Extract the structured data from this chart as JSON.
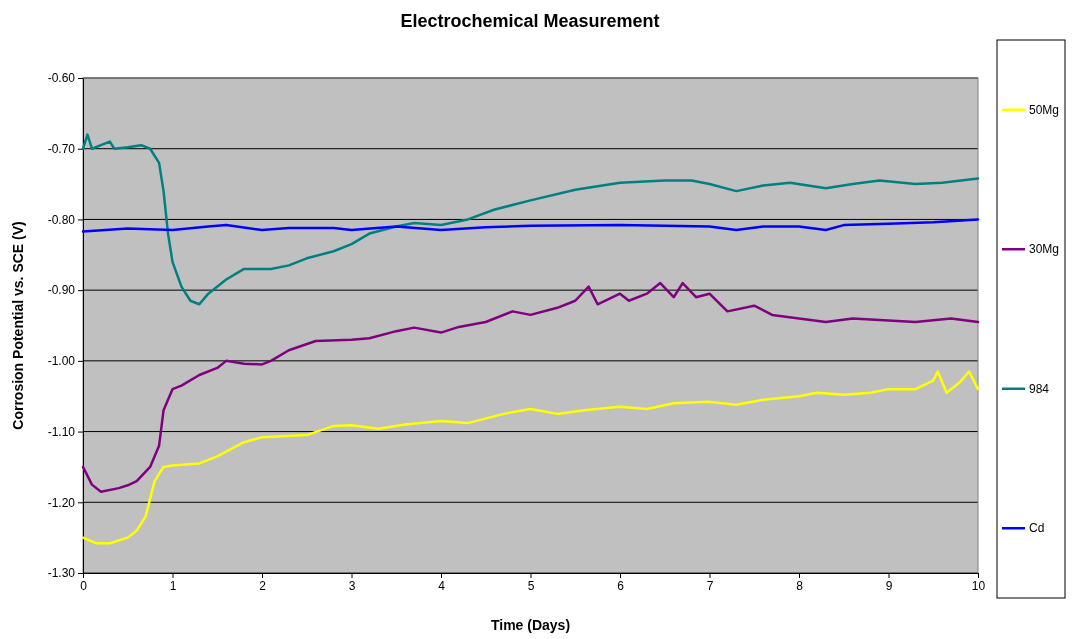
{
  "chart_data": {
    "type": "line",
    "title": "Electrochemical Measurement",
    "xlabel": "Time (Days)",
    "ylabel": "Corrosion Potential vs. SCE (V)",
    "xlim": [
      0,
      10
    ],
    "xticks": [
      0,
      1,
      2,
      3,
      4,
      5,
      6,
      7,
      8,
      9,
      10
    ],
    "ylim": [
      -1.3,
      -0.6
    ],
    "yticks": [
      {
        "value": -1.3,
        "label": "-1.30"
      },
      {
        "value": -1.2,
        "label": "-1.20"
      },
      {
        "value": -1.1,
        "label": "-1.10"
      },
      {
        "value": -1.0,
        "label": "-1.00"
      },
      {
        "value": -0.9,
        "label": "-0.90"
      },
      {
        "value": -0.8,
        "label": "-0.80"
      },
      {
        "value": -0.7,
        "label": "-0.70"
      },
      {
        "value": -0.6,
        "label": "-0.60"
      }
    ],
    "grid": "y",
    "legend": "right",
    "marker": "none",
    "line_style": "solid",
    "series": [
      {
        "name": "50Mg",
        "color": "#ffff00",
        "x": [
          0,
          0.15,
          0.3,
          0.5,
          0.6,
          0.7,
          0.8,
          0.9,
          1.0,
          1.3,
          1.5,
          1.8,
          2.0,
          2.5,
          2.8,
          3.0,
          3.3,
          3.6,
          4.0,
          4.3,
          4.7,
          5.0,
          5.3,
          5.6,
          6.0,
          6.3,
          6.6,
          7.0,
          7.3,
          7.6,
          8.0,
          8.2,
          8.5,
          8.8,
          9.0,
          9.3,
          9.5,
          9.55,
          9.65,
          9.8,
          9.9,
          10
        ],
        "values": [
          -1.25,
          -1.258,
          -1.258,
          -1.25,
          -1.24,
          -1.22,
          -1.17,
          -1.15,
          -1.148,
          -1.145,
          -1.135,
          -1.115,
          -1.108,
          -1.105,
          -1.092,
          -1.091,
          -1.096,
          -1.09,
          -1.085,
          -1.088,
          -1.075,
          -1.068,
          -1.075,
          -1.07,
          -1.065,
          -1.068,
          -1.06,
          -1.058,
          -1.062,
          -1.055,
          -1.05,
          -1.045,
          -1.048,
          -1.045,
          -1.04,
          -1.04,
          -1.028,
          -1.015,
          -1.045,
          -1.03,
          -1.015,
          -1.04
        ]
      },
      {
        "name": "30Mg",
        "color": "#800080",
        "x": [
          0,
          0.1,
          0.2,
          0.4,
          0.5,
          0.6,
          0.75,
          0.85,
          0.9,
          1.0,
          1.1,
          1.3,
          1.5,
          1.6,
          1.8,
          2.0,
          2.1,
          2.3,
          2.6,
          3.0,
          3.2,
          3.5,
          3.7,
          4.0,
          4.2,
          4.5,
          4.8,
          5.0,
          5.3,
          5.5,
          5.65,
          5.75,
          6.0,
          6.1,
          6.3,
          6.45,
          6.6,
          6.7,
          6.85,
          7.0,
          7.2,
          7.5,
          7.7,
          8.0,
          8.3,
          8.6,
          9.0,
          9.3,
          9.7,
          10
        ],
        "values": [
          -1.15,
          -1.175,
          -1.185,
          -1.18,
          -1.176,
          -1.17,
          -1.15,
          -1.12,
          -1.07,
          -1.04,
          -1.035,
          -1.02,
          -1.01,
          -1.0,
          -1.004,
          -1.005,
          -1.0,
          -0.985,
          -0.972,
          -0.97,
          -0.968,
          -0.958,
          -0.953,
          -0.96,
          -0.952,
          -0.945,
          -0.93,
          -0.935,
          -0.925,
          -0.915,
          -0.895,
          -0.92,
          -0.905,
          -0.915,
          -0.905,
          -0.89,
          -0.91,
          -0.89,
          -0.91,
          -0.905,
          -0.93,
          -0.922,
          -0.935,
          -0.94,
          -0.945,
          -0.94,
          -0.943,
          -0.945,
          -0.94,
          -0.945
        ]
      },
      {
        "name": "984",
        "color": "#008080",
        "x": [
          0,
          0.05,
          0.1,
          0.2,
          0.3,
          0.35,
          0.5,
          0.65,
          0.75,
          0.85,
          0.9,
          0.95,
          1.0,
          1.1,
          1.2,
          1.3,
          1.4,
          1.6,
          1.8,
          2.0,
          2.1,
          2.3,
          2.5,
          2.8,
          3.0,
          3.2,
          3.5,
          3.7,
          4.0,
          4.3,
          4.6,
          5.0,
          5.5,
          6.0,
          6.5,
          6.8,
          7.0,
          7.3,
          7.6,
          7.9,
          8.3,
          8.6,
          8.9,
          9.3,
          9.6,
          10
        ],
        "values": [
          -0.7,
          -0.68,
          -0.7,
          -0.695,
          -0.69,
          -0.7,
          -0.698,
          -0.695,
          -0.7,
          -0.72,
          -0.76,
          -0.82,
          -0.86,
          -0.895,
          -0.915,
          -0.92,
          -0.905,
          -0.885,
          -0.87,
          -0.87,
          -0.87,
          -0.865,
          -0.855,
          -0.845,
          -0.835,
          -0.82,
          -0.81,
          -0.805,
          -0.808,
          -0.8,
          -0.786,
          -0.773,
          -0.758,
          -0.748,
          -0.745,
          -0.745,
          -0.75,
          -0.76,
          -0.752,
          -0.748,
          -0.756,
          -0.75,
          -0.745,
          -0.75,
          -0.748,
          -0.742
        ]
      },
      {
        "name": "Cd",
        "color": "#0000ff",
        "x": [
          0,
          0.5,
          1.0,
          1.4,
          1.6,
          2.0,
          2.3,
          2.8,
          3.0,
          3.5,
          4.0,
          4.5,
          5.0,
          6.0,
          7.0,
          7.3,
          7.6,
          8.0,
          8.3,
          8.5,
          9.0,
          9.5,
          10
        ],
        "values": [
          -0.817,
          -0.813,
          -0.815,
          -0.81,
          -0.808,
          -0.815,
          -0.812,
          -0.812,
          -0.815,
          -0.81,
          -0.815,
          -0.811,
          -0.809,
          -0.808,
          -0.81,
          -0.815,
          -0.81,
          -0.81,
          -0.815,
          -0.808,
          -0.806,
          -0.804,
          -0.8
        ]
      }
    ]
  }
}
